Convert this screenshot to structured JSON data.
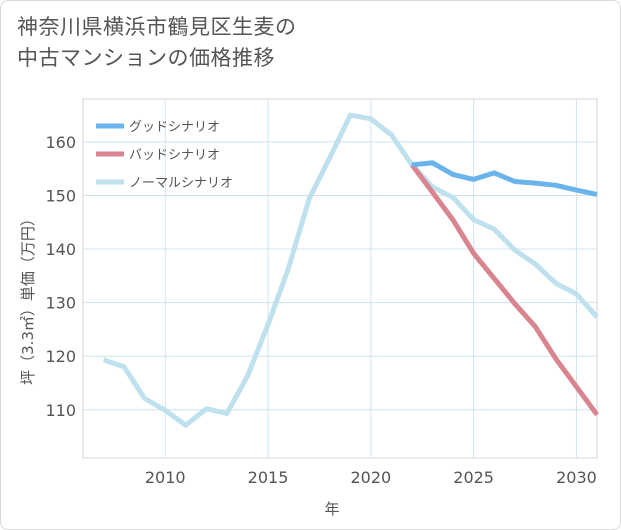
{
  "title_line1": "神奈川県横浜市鶴見区生麦の",
  "title_line2": "中古マンションの価格推移",
  "chart_data": {
    "type": "line",
    "xlabel": "年",
    "ylabel": "坪（3.3㎡）単価（万円）",
    "xlim": [
      2006,
      2031
    ],
    "ylim": [
      101,
      168
    ],
    "xticks": [
      2010,
      2015,
      2020,
      2025,
      2030
    ],
    "yticks": [
      110,
      120,
      130,
      140,
      150,
      160
    ],
    "grid": true,
    "legend_position": "top-left",
    "series": [
      {
        "name": "グッドシナリオ",
        "color": "#6ab4ec",
        "x": [
          2022,
          2023,
          2024,
          2025,
          2026,
          2027,
          2028,
          2029,
          2030,
          2031
        ],
        "y": [
          155.7,
          156.1,
          153.9,
          153.0,
          154.2,
          152.6,
          152.3,
          151.9,
          151.0,
          150.2
        ]
      },
      {
        "name": "バッドシナリオ",
        "color": "#d9858f",
        "x": [
          2022,
          2023,
          2024,
          2025,
          2026,
          2027,
          2028,
          2029,
          2030,
          2031
        ],
        "y": [
          155.7,
          150.6,
          145.4,
          139.2,
          134.5,
          129.8,
          125.5,
          119.5,
          114.3,
          109.1
        ]
      },
      {
        "name": "ノーマルシナリオ",
        "color": "#bfe1ee",
        "x": [
          2007,
          2008,
          2009,
          2010,
          2011,
          2012,
          2013,
          2014,
          2015,
          2016,
          2017,
          2018,
          2019,
          2020,
          2021,
          2022,
          2023,
          2024,
          2025,
          2026,
          2027,
          2028,
          2029,
          2030,
          2031
        ],
        "y": [
          119.3,
          118.0,
          112.1,
          109.9,
          107.1,
          110.2,
          109.3,
          116.3,
          125.9,
          136.5,
          149.4,
          157.0,
          165.0,
          164.3,
          161.3,
          155.7,
          151.6,
          149.6,
          145.5,
          143.7,
          139.8,
          137.2,
          133.6,
          131.6,
          127.3
        ]
      }
    ]
  }
}
